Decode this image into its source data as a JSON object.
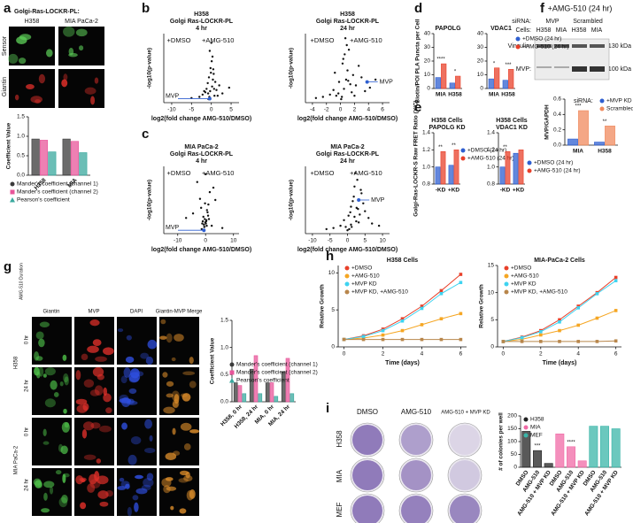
{
  "figure": {
    "panel_letters": [
      "a",
      "b",
      "c",
      "d",
      "e",
      "f",
      "g",
      "h",
      "i"
    ],
    "a": {
      "header": "Golgi-Ras-LOCKR-PL:",
      "columns": [
        "H358",
        "MIA PaCa-2"
      ],
      "rows": [
        "Sensor",
        "Giantin"
      ]
    },
    "f": {
      "title": "+AMG-510 (24 hr)",
      "sirna_label": "siRNA:",
      "sirna": [
        "MVP",
        "Scrambled"
      ],
      "cells_label": "Cells:",
      "cells": [
        "H358",
        "MIA",
        "H358",
        "MIA"
      ],
      "bands": [
        "Vinculin:",
        "MVP:"
      ],
      "kda": [
        "130 kDa",
        "100 kDa"
      ]
    },
    "g": {
      "side_label": "AMG-510 Duration",
      "columns": [
        "Giantin",
        "MVP",
        "DAPI",
        "Giantin-MVP Merge"
      ],
      "rows": [
        "0 hr",
        "24 hr",
        "0 hr",
        "24 hr"
      ],
      "groups": [
        "H358",
        "MIA PaCa-2"
      ]
    },
    "i": {
      "columns": [
        "DMSO",
        "AMG-510",
        "AMG-510 + MVP KD"
      ],
      "rows": [
        "H358",
        "MIA",
        "MEF"
      ]
    }
  },
  "chart_data": [
    {
      "type": "bar",
      "ylabel": "Coefficient Value",
      "categories": [
        "H358",
        "MIA"
      ],
      "series": [
        {
          "name": "Mander's coefficient (channel 1)",
          "color": "#3a3a3a",
          "marker": "circle",
          "values": [
            0.93,
            0.93
          ]
        },
        {
          "name": "Mander's coefficient (channel 2)",
          "color": "#e8559a",
          "marker": "square",
          "values": [
            0.9,
            0.87
          ]
        },
        {
          "name": "Pearson's coefficient",
          "color": "#39a89e",
          "marker": "triangle",
          "values": [
            0.6,
            0.58
          ]
        }
      ],
      "ylim": [
        0,
        1.5
      ],
      "yticks": [
        {
          "value": 0,
          "label": "0.0"
        },
        {
          "value": 0.5,
          "label": "0.5"
        },
        {
          "value": 1,
          "label": "1.0"
        },
        {
          "value": 1.5,
          "label": "1.5"
        }
      ],
      "legend": "below"
    },
    {
      "type": "scatter",
      "title": [
        "H358",
        "Golgi Ras-LOCKR-PL",
        "4 hr"
      ],
      "xlabel": "log2(fold change AMG-510/DMSO)",
      "ylabel": "-log10(p-value)",
      "annotations": [
        {
          "text": "+DMSO",
          "color": "#e8402a"
        },
        {
          "text": "+AMG-510",
          "color": "#e8402a"
        }
      ],
      "series": [
        {
          "color": "#111111",
          "x": [
            -0.5,
            -0.3,
            0.2,
            0.4,
            -0.8,
            0.6,
            -1.2,
            1.0,
            -0.2,
            0.1,
            -1.5,
            1.3,
            -0.6,
            0.8,
            -2.2,
            2.0,
            -0.4,
            0.3,
            -3,
            2.8,
            -0.9,
            0.5,
            -1.8,
            1.6,
            4.5,
            -5,
            0,
            -0.1,
            0.7,
            -0.7
          ],
          "values": [
            0.5,
            1.0,
            1.4,
            2.0,
            0.8,
            2.5,
            1.2,
            1.8,
            3.0,
            3.6,
            0.9,
            1.1,
            2.2,
            0.6,
            0.7,
            1.5,
            4.5,
            4.0,
            0.5,
            0.8,
            1.7,
            2.9,
            1.0,
            0.6,
            1.3,
            0.4,
            5.2,
            2.6,
            1.2,
            0.3
          ]
        },
        {
          "name": "MVP",
          "color": "#2f5fd0",
          "x": [
            -0.4
          ],
          "values": [
            0.35
          ]
        }
      ],
      "xlim": [
        -12,
        7
      ],
      "xticks": [
        -10,
        -5,
        0,
        5
      ],
      "ylim": [
        0,
        6
      ]
    },
    {
      "type": "scatter",
      "title": [
        "H358",
        "Golgi Ras-LOCKR-PL",
        "24 hr"
      ],
      "xlabel": "log2(fold change AMG-510/DMSO)",
      "ylabel": "-log10(p-value)",
      "annotations": [
        {
          "text": "+DMSO",
          "color": "#e8402a"
        },
        {
          "text": "+AMG-510",
          "color": "#e8402a"
        }
      ],
      "series": [
        {
          "color": "#111111",
          "x": [
            0.2,
            0.5,
            -0.3,
            0.8,
            1.0,
            -0.6,
            1.4,
            0.3,
            -1,
            1.8,
            0.6,
            2.2,
            -1.5,
            2.6,
            0.9,
            3.0,
            -0.2,
            1.2,
            3.5,
            0.4,
            -2.5,
            4.2,
            1.6,
            0.7,
            -0.8,
            2.0,
            5.0,
            0.1,
            1.1,
            -3.5
          ],
          "values": [
            0.5,
            1.2,
            0.8,
            2.0,
            2.8,
            0.6,
            1.6,
            3.4,
            1.1,
            2.4,
            4.2,
            1.5,
            0.7,
            3.2,
            5.0,
            2.2,
            1.8,
            4.6,
            1.0,
            3.8,
            0.5,
            1.3,
            0.9,
            5.6,
            2.6,
            0.6,
            2.0,
            0.3,
            1.9,
            0.4
          ]
        },
        {
          "name": "MVP",
          "color": "#2f5fd0",
          "x": [
            3.8
          ],
          "values": [
            1.8
          ]
        }
      ],
      "xlim": [
        -5,
        7
      ],
      "xticks": [
        -4,
        -2,
        0,
        2,
        4,
        6
      ],
      "ylim": [
        0,
        6
      ]
    },
    {
      "type": "scatter",
      "title": [
        "MIA PaCa-2",
        "Golgi Ras-LOCKR-PL",
        "4 hr"
      ],
      "xlabel": "log2(fold change AMG-510/DMSO)",
      "ylabel": "-log10(p-value)",
      "annotations": [
        {
          "text": "+DMSO",
          "color": "#e8402a"
        },
        {
          "text": "+AMG-510",
          "color": "#e8402a"
        }
      ],
      "series": [
        {
          "color": "#111111",
          "x": [
            -0.5,
            0.2,
            -0.8,
            0.5,
            -1.2,
            1.0,
            -0.3,
            0.7,
            -2,
            1.5,
            -0.1,
            0.3,
            -1.6,
            2.2,
            -0.6,
            0.9,
            -3,
            2.8,
            -0.4,
            0.1,
            -4.5,
            3.5,
            -1,
            0.4,
            -7,
            6,
            0,
            -0.2,
            1.2,
            -1.4
          ],
          "values": [
            0.6,
            1.1,
            1.5,
            2.1,
            0.9,
            2.6,
            1.3,
            1.9,
            3.1,
            3.7,
            1.0,
            1.2,
            2.3,
            0.7,
            0.8,
            1.6,
            4.6,
            4.1,
            0.6,
            0.9,
            1.8,
            3.0,
            1.1,
            0.7,
            1.4,
            0.5,
            5.3,
            2.7,
            1.3,
            0.4
          ]
        },
        {
          "name": "MVP",
          "color": "#2f5fd0",
          "x": [
            -0.6
          ],
          "values": [
            0.3
          ]
        }
      ],
      "xlim": [
        -15,
        12
      ],
      "xticks": [
        -10,
        0,
        10
      ],
      "ylim": [
        0,
        6
      ]
    },
    {
      "type": "scatter",
      "title": [
        "MIA PaCa-2",
        "Golgi Ras-LOCKR-PL",
        "24 hr"
      ],
      "xlabel": "log2(fold change AMG-510/DMSO)",
      "ylabel": "-log10(p-value)",
      "annotations": [
        {
          "text": "+DMSO",
          "color": "#e8402a"
        },
        {
          "text": "+AMG-510",
          "color": "#e8402a"
        }
      ],
      "series": [
        {
          "color": "#111111",
          "x": [
            1,
            2,
            0.5,
            3,
            1.5,
            2.5,
            -0.5,
            4,
            2,
            3.5,
            1,
            5,
            0,
            2.8,
            -2,
            6,
            1.8,
            3.2,
            -4,
            0.8,
            2.2,
            7,
            -1,
            4.5,
            1.2,
            -6,
            3.8,
            9,
            0.3,
            2.6
          ],
          "values": [
            0.8,
            1.5,
            0.4,
            2.2,
            2.9,
            1.1,
            0.6,
            3.6,
            4.2,
            1.7,
            2.4,
            2.0,
            0.3,
            4.8,
            0.7,
            1.4,
            3.3,
            1.0,
            0.5,
            1.9,
            5.4,
            0.9,
            1.2,
            2.7,
            0.6,
            0.4,
            3.9,
            0.7,
            1.6,
            2.3
          ]
        },
        {
          "name": "MVP",
          "color": "#2f5fd0",
          "x": [
            3.2
          ],
          "values": [
            3.0
          ]
        }
      ],
      "xlim": [
        -12,
        12
      ],
      "xticks": [
        -10,
        -5,
        0,
        5,
        10
      ],
      "ylim": [
        0,
        6
      ]
    },
    {
      "type": "bar",
      "title": "PAPOLG",
      "ylabel": "Biotin/POI PLA Puncta per Cell",
      "categories": [
        "MIA",
        "H358"
      ],
      "series": [
        {
          "color": "#2f5fd0",
          "values": [
            8,
            4
          ]
        },
        {
          "color": "#e8402a",
          "values": [
            18,
            9
          ]
        }
      ],
      "ylim": [
        0,
        40
      ],
      "yticks": [
        0,
        10,
        20,
        30,
        40
      ],
      "significance": [
        "****",
        "*"
      ]
    },
    {
      "type": "bar",
      "title": "VDAC1",
      "categories": [
        "MIA",
        "H358"
      ],
      "series": [
        {
          "name": "+DMSO (24 hr)",
          "color": "#2f5fd0",
          "values": [
            7,
            6
          ]
        },
        {
          "name": "+AMG-510 (24 hr)",
          "color": "#e8402a",
          "values": [
            15,
            14
          ]
        }
      ],
      "ylim": [
        0,
        40
      ],
      "yticks": [
        0,
        10,
        20,
        30,
        40
      ],
      "significance": [
        "*",
        "***"
      ],
      "legend": "right"
    },
    {
      "type": "bar",
      "title": [
        "H358 Cells",
        "PAPOLG KD"
      ],
      "ylabel": "Golgi-Ras-LOCKR-S Raw FRET Ratio (Y/C)",
      "categories": [
        "-KD",
        "+KD"
      ],
      "series": [
        {
          "name": "+DMSO (24 hr)",
          "color": "#2f5fd0",
          "values": [
            1.0,
            1.02
          ]
        },
        {
          "name": "+AMG-510 (24 hr)",
          "color": "#e8402a",
          "values": [
            1.18,
            1.2
          ]
        }
      ],
      "ylim": [
        0.8,
        1.4
      ],
      "yticks": [
        0.8,
        {
          "value": 1,
          "label": "1.0"
        },
        1.2,
        1.4
      ],
      "significance": [
        "**",
        "**"
      ],
      "legend": "right"
    },
    {
      "type": "bar",
      "title": [
        "H358 Cells",
        "VDAC1 KD"
      ],
      "categories": [
        "-KD",
        "+KD"
      ],
      "series": [
        {
          "name": "+DMSO (24 hr)",
          "color": "#2f5fd0",
          "values": [
            1.0,
            1.16
          ]
        },
        {
          "name": "+AMG-510 (24 hr)",
          "color": "#e8402a",
          "values": [
            1.18,
            1.2
          ]
        }
      ],
      "ylim": [
        0.8,
        1.4
      ],
      "yticks": [
        0.8,
        {
          "value": 1,
          "label": "1.0"
        },
        1.2,
        1.4
      ],
      "significance": [
        "**",
        null
      ],
      "legend": "right"
    },
    {
      "type": "bar",
      "ylabel": "MVP/GAPDH",
      "categories": [
        "MIA",
        "H358"
      ],
      "legend_title": "siRNA:",
      "series": [
        {
          "name": "+MVP KD",
          "color": "#2f5fd0",
          "values": [
            0.08,
            0.04
          ]
        },
        {
          "name": "Scrambled",
          "color": "#f08a5d",
          "values": [
            0.45,
            0.25
          ]
        }
      ],
      "ylim": [
        0,
        0.6
      ],
      "yticks": [
        {
          "value": 0,
          "label": "0.0"
        },
        {
          "value": 0.2,
          "label": "0.2"
        },
        {
          "value": 0.4,
          "label": "0.4"
        },
        {
          "value": 0.6,
          "label": "0.6"
        }
      ],
      "significance": [
        "***",
        "**"
      ],
      "legend": "top-right"
    },
    {
      "type": "bar",
      "ylabel": "Coefficient Value",
      "categories": [
        "H358, 0 hr",
        "H358, 24 hr",
        "MIA, 0 hr",
        "MIA, 24 hr"
      ],
      "series": [
        {
          "name": "Mander's coefficient (channel 1)",
          "color": "#3a3a3a",
          "marker": "circle",
          "values": [
            0.35,
            0.6,
            0.35,
            0.55
          ]
        },
        {
          "name": "Mander's coefficient (channel 2)",
          "color": "#e8559a",
          "marker": "square",
          "values": [
            0.3,
            0.85,
            0.35,
            0.8
          ]
        },
        {
          "name": "Pearson's coefficient",
          "color": "#39a89e",
          "marker": "triangle",
          "values": [
            0.15,
            0.15,
            0.1,
            0.15
          ]
        }
      ],
      "ylim": [
        0,
        1.5
      ],
      "yticks": [
        {
          "value": 0,
          "label": "0.0"
        },
        {
          "value": 0.5,
          "label": "0.5"
        },
        {
          "value": 1,
          "label": "1.0"
        },
        {
          "value": 1.5,
          "label": "1.5"
        }
      ],
      "legend": "bottom-left"
    },
    {
      "type": "line",
      "title": "H358 Cells",
      "xlabel": "Time (days)",
      "ylabel": "Relative Growth",
      "x": [
        0,
        1,
        2,
        3,
        4,
        5,
        6
      ],
      "series": [
        {
          "name": "+DMSO",
          "color": "#e8402a",
          "values": [
            1,
            1.5,
            2.4,
            3.8,
            5.5,
            7.6,
            9.8
          ]
        },
        {
          "name": "+AMG-510",
          "color": "#f5a623",
          "values": [
            1,
            1.2,
            1.6,
            2.2,
            3,
            3.8,
            4.5
          ]
        },
        {
          "name": "+MVP KD",
          "color": "#3fd3f0",
          "values": [
            1,
            1.4,
            2.2,
            3.5,
            5.2,
            7.2,
            8.7
          ]
        },
        {
          "name": "+MVP KD, +AMG-510",
          "color": "#b8864b",
          "values": [
            1,
            1,
            1,
            1,
            1,
            1,
            1
          ]
        }
      ],
      "xlim": [
        -0.3,
        6.3
      ],
      "xticks": [
        0,
        2,
        4,
        6
      ],
      "ylim": [
        0,
        11
      ],
      "yticks": [
        0,
        5,
        10
      ],
      "legend": "top-left"
    },
    {
      "type": "line",
      "title": "MIA-PaCa-2 Cells",
      "xlabel": "Time (days)",
      "ylabel": "Relative Growth",
      "x": [
        0,
        1,
        2,
        3,
        4,
        5,
        6
      ],
      "series": [
        {
          "name": "+DMSO",
          "color": "#e8402a",
          "values": [
            1,
            1.8,
            3,
            5,
            7.5,
            10,
            12.8
          ]
        },
        {
          "name": "+AMG-510",
          "color": "#f5a623",
          "values": [
            1,
            1.4,
            2.2,
            3,
            4,
            5.3,
            6.7
          ]
        },
        {
          "name": "+MVP KD",
          "color": "#3fd3f0",
          "values": [
            1,
            1.7,
            2.8,
            4.6,
            7.2,
            9.8,
            12.2
          ]
        },
        {
          "name": "+MVP KD, +AMG-510",
          "color": "#b8864b",
          "values": [
            1,
            1,
            1,
            1,
            1,
            1,
            1.1
          ]
        }
      ],
      "xlim": [
        -0.3,
        6.3
      ],
      "xticks": [
        0,
        2,
        4,
        6
      ],
      "ylim": [
        0,
        15
      ],
      "yticks": [
        0,
        5,
        10,
        15
      ],
      "legend": "top-left"
    },
    {
      "type": "bar",
      "ylabel": "# of colonies per well",
      "categories": [
        "DMSO",
        "AMG-510",
        "AMG-510 + MVP KD",
        "DMSO",
        "AMG-510",
        "AMG-510 + MVP KD",
        "DMSO",
        "AMG-510",
        "AMG-510 + MVP KD"
      ],
      "series": [
        {
          "name": "H358",
          "color": "#222222",
          "marker": "circle",
          "values": [
            140,
            65,
            15,
            null,
            null,
            null,
            null,
            null,
            null
          ]
        },
        {
          "name": "MIA",
          "color": "#f06aa6",
          "marker": "circle",
          "values": [
            null,
            null,
            null,
            130,
            80,
            25,
            null,
            null,
            null
          ]
        },
        {
          "name": "MEF",
          "color": "#3ab5a8",
          "marker": "circle",
          "values": [
            null,
            null,
            null,
            null,
            null,
            null,
            160,
            160,
            150
          ]
        }
      ],
      "ylim": [
        0,
        200
      ],
      "yticks": [
        0,
        50,
        100,
        150,
        200
      ],
      "significance": [
        null,
        "***",
        null,
        null,
        "****",
        null,
        null,
        null,
        null
      ],
      "legend": "top-left"
    }
  ]
}
